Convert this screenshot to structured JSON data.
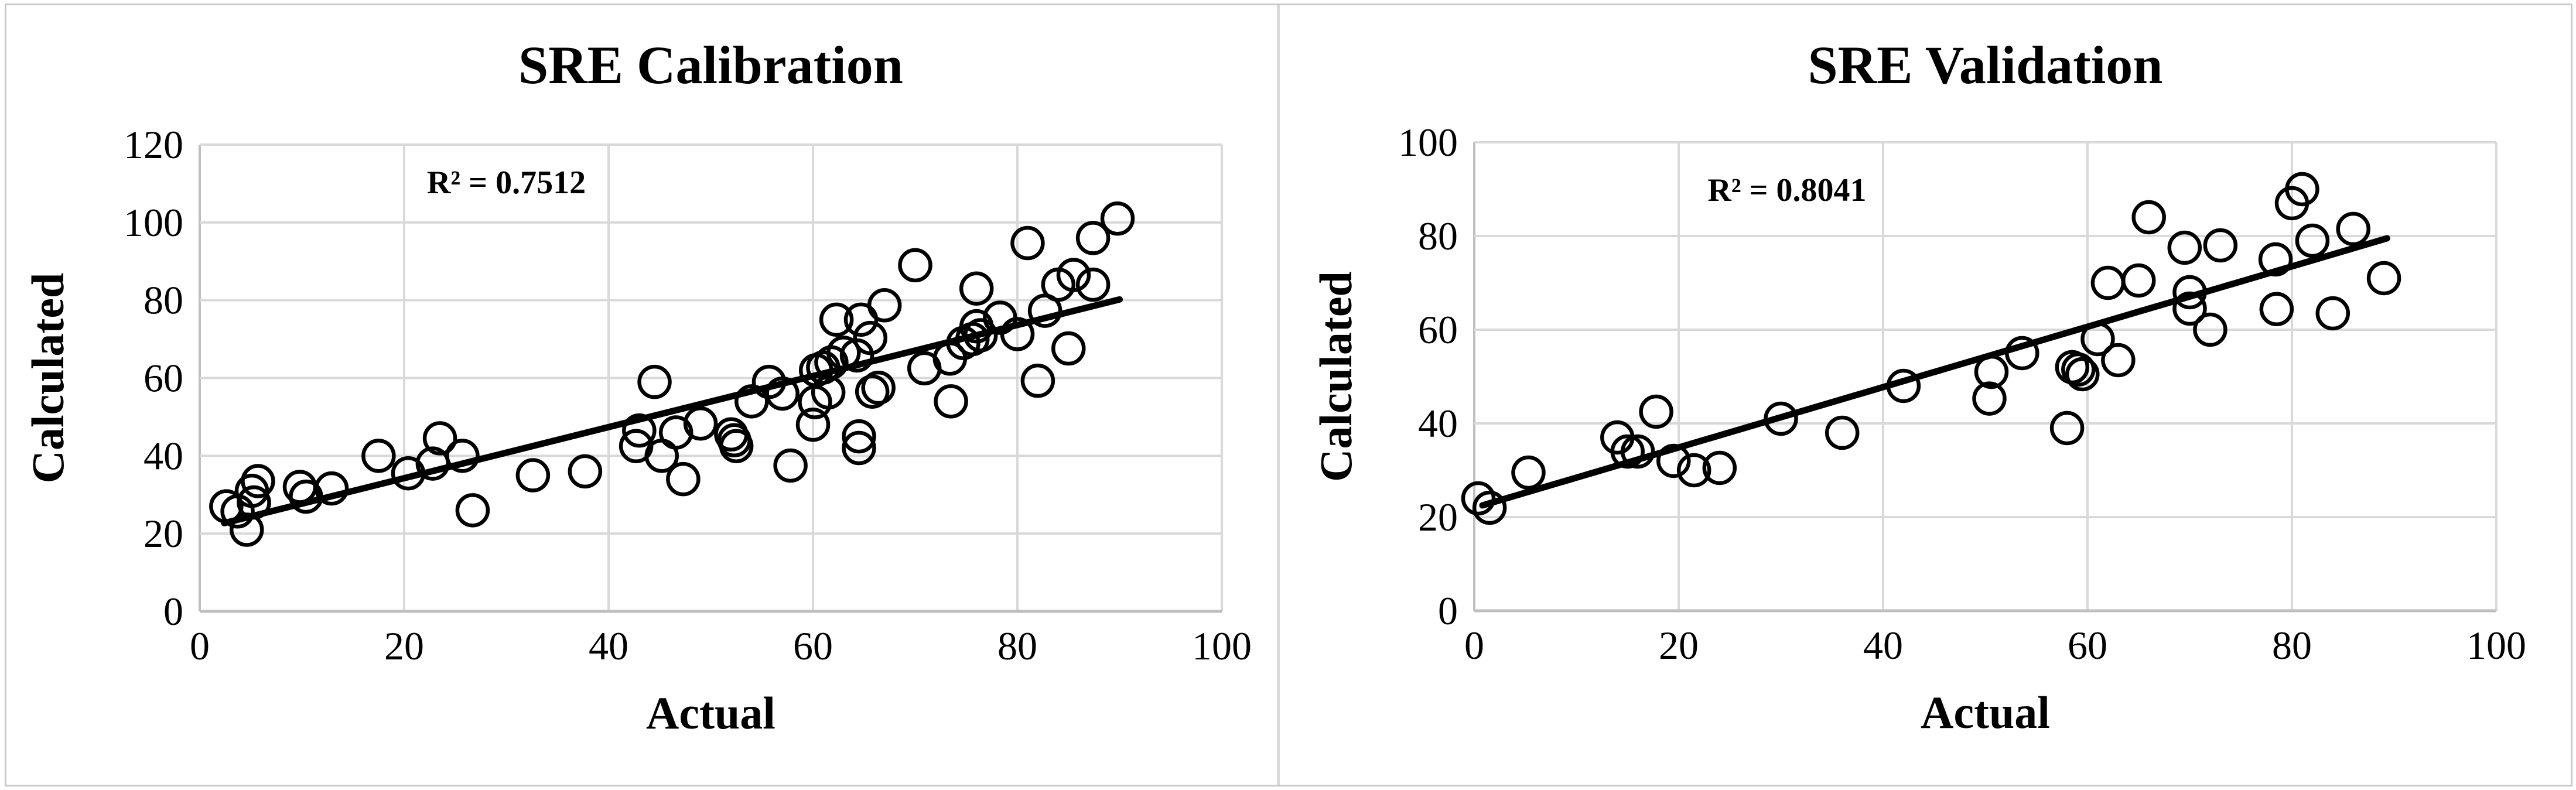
{
  "figure": {
    "background": "#ffffff",
    "border_color": "#c9c9c9",
    "divider_color": "#d9d9d9",
    "gridline_color": "#d9d9d9",
    "axisline_color": "#bfbfbf",
    "marker_color": "#000000",
    "trendline_color": "#000000"
  },
  "chart_data": [
    {
      "type": "scatter",
      "panel": "left",
      "title": "SRE Calibration",
      "r2_label": "R² = 0.7512",
      "xlabel": "Actual",
      "ylabel": "Calculated",
      "xlim": [
        0,
        100
      ],
      "ylim": [
        0,
        120
      ],
      "xticks": [
        0,
        20,
        40,
        60,
        80,
        100
      ],
      "yticks": [
        0,
        20,
        40,
        60,
        80,
        100,
        120
      ],
      "grid": true,
      "legend": "none",
      "r2_anchor": {
        "x": 30,
        "y": 110.5
      },
      "trendline": {
        "x1": 2.4,
        "y1": 22.7,
        "x2": 90,
        "y2": 80.2
      },
      "points": [
        [
          2.6,
          27
        ],
        [
          3.7,
          25.7
        ],
        [
          4.6,
          21
        ],
        [
          5.1,
          31
        ],
        [
          5.3,
          28
        ],
        [
          5.7,
          33.5
        ],
        [
          9.8,
          32
        ],
        [
          10.4,
          29.5
        ],
        [
          12.9,
          31.6
        ],
        [
          17.5,
          40
        ],
        [
          20.4,
          35.5
        ],
        [
          22.8,
          38
        ],
        [
          23.5,
          44.5
        ],
        [
          25.7,
          40
        ],
        [
          26.7,
          26
        ],
        [
          32.6,
          35
        ],
        [
          37.7,
          36
        ],
        [
          42.7,
          42.5
        ],
        [
          43,
          46.5
        ],
        [
          44.5,
          59
        ],
        [
          45.2,
          40
        ],
        [
          46.6,
          46
        ],
        [
          47.3,
          34
        ],
        [
          49,
          48.3
        ],
        [
          52,
          45.5
        ],
        [
          52.3,
          44
        ],
        [
          52.5,
          42.5
        ],
        [
          54,
          54
        ],
        [
          55.7,
          59
        ],
        [
          57,
          56
        ],
        [
          57.8,
          37.5
        ],
        [
          60,
          48
        ],
        [
          60.2,
          53.8
        ],
        [
          60.3,
          62
        ],
        [
          61,
          62.7
        ],
        [
          61.5,
          56.3
        ],
        [
          61.8,
          64
        ],
        [
          62.3,
          75
        ],
        [
          63,
          66.5
        ],
        [
          64.3,
          65.8
        ],
        [
          64.5,
          45
        ],
        [
          64.5,
          42
        ],
        [
          64.7,
          75
        ],
        [
          65.6,
          70.3
        ],
        [
          65.8,
          56.5
        ],
        [
          66.4,
          57.5
        ],
        [
          67,
          78.7
        ],
        [
          70,
          89
        ],
        [
          70.9,
          62.5
        ],
        [
          73.4,
          65
        ],
        [
          73.5,
          54
        ],
        [
          74.7,
          69
        ],
        [
          75.6,
          70
        ],
        [
          76,
          73.3
        ],
        [
          76.4,
          71
        ],
        [
          76,
          83
        ],
        [
          78.3,
          75.5
        ],
        [
          80,
          71.3
        ],
        [
          81,
          94.7
        ],
        [
          82,
          59.3
        ],
        [
          82.7,
          77.3
        ],
        [
          84,
          84
        ],
        [
          85,
          67.6
        ],
        [
          85.5,
          86.5
        ],
        [
          87.4,
          84
        ],
        [
          87.4,
          96
        ],
        [
          89.8,
          101
        ]
      ]
    },
    {
      "type": "scatter",
      "panel": "right",
      "title": "SRE Validation",
      "r2_label": "R² = 0.8041",
      "xlabel": "Actual",
      "ylabel": "Calculated",
      "xlim": [
        0,
        100
      ],
      "ylim": [
        0,
        100
      ],
      "xticks": [
        0,
        20,
        40,
        60,
        80,
        100
      ],
      "yticks": [
        0,
        20,
        40,
        60,
        80,
        100
      ],
      "grid": true,
      "legend": "none",
      "r2_anchor": {
        "x": 30.6,
        "y": 90
      },
      "trendline": {
        "x1": 0.8,
        "y1": 22.5,
        "x2": 89.3,
        "y2": 79.5
      },
      "points": [
        [
          0.4,
          24
        ],
        [
          1.5,
          22
        ],
        [
          5.3,
          29.5
        ],
        [
          14,
          37
        ],
        [
          15,
          34
        ],
        [
          16,
          34
        ],
        [
          17.8,
          42.5
        ],
        [
          19.5,
          32
        ],
        [
          21.5,
          30
        ],
        [
          24,
          30.5
        ],
        [
          30,
          41
        ],
        [
          36,
          38
        ],
        [
          42,
          48
        ],
        [
          50.4,
          45.3
        ],
        [
          50.6,
          51
        ],
        [
          53.6,
          55
        ],
        [
          58,
          39
        ],
        [
          58.5,
          52
        ],
        [
          59.1,
          51.5
        ],
        [
          59.5,
          50.5
        ],
        [
          61,
          58
        ],
        [
          62,
          70
        ],
        [
          63,
          53.5
        ],
        [
          65,
          70.5
        ],
        [
          66,
          84
        ],
        [
          69.5,
          77.5
        ],
        [
          70,
          68
        ],
        [
          70,
          64.5
        ],
        [
          72,
          60
        ],
        [
          73,
          78
        ],
        [
          78.4,
          75
        ],
        [
          78.5,
          64.4
        ],
        [
          80,
          87
        ],
        [
          81,
          90
        ],
        [
          82,
          79
        ],
        [
          84,
          63.5
        ],
        [
          86,
          81.5
        ],
        [
          89,
          71
        ]
      ]
    }
  ]
}
